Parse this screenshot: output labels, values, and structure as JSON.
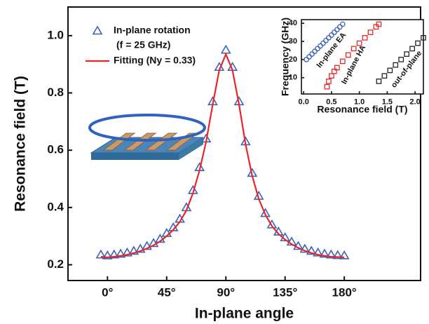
{
  "chart_data": [
    {
      "type": "line",
      "x_label": "In-plane angle",
      "y_label": "Resonance field (T)",
      "x": [
        -5,
        0,
        5,
        10,
        15,
        20,
        25,
        30,
        35,
        40,
        45,
        50,
        55,
        60,
        65,
        70,
        75,
        80,
        85,
        90,
        95,
        100,
        105,
        110,
        115,
        120,
        125,
        130,
        135,
        140,
        145,
        150,
        155,
        160,
        165,
        170,
        175,
        180
      ],
      "series": [
        {
          "name": "In-plane rotation",
          "note": "(f = 25 GHz)",
          "color": "#3a62b8",
          "marker": "triangle",
          "values": [
            0.235,
            0.232,
            0.235,
            0.238,
            0.242,
            0.248,
            0.255,
            0.265,
            0.275,
            0.29,
            0.31,
            0.33,
            0.36,
            0.4,
            0.46,
            0.54,
            0.64,
            0.77,
            0.89,
            0.95,
            0.89,
            0.77,
            0.63,
            0.52,
            0.44,
            0.38,
            0.34,
            0.315,
            0.295,
            0.28,
            0.265,
            0.255,
            0.248,
            0.242,
            0.238,
            0.235,
            0.233,
            0.232
          ]
        },
        {
          "name": "Fitting (Ny = 0.33)",
          "color": "#e8262a",
          "marker": "none",
          "values": [
            0.228,
            0.226,
            0.228,
            0.231,
            0.235,
            0.241,
            0.248,
            0.257,
            0.268,
            0.282,
            0.3,
            0.322,
            0.35,
            0.39,
            0.45,
            0.53,
            0.63,
            0.76,
            0.88,
            0.935,
            0.88,
            0.76,
            0.62,
            0.51,
            0.43,
            0.375,
            0.335,
            0.308,
            0.288,
            0.272,
            0.259,
            0.249,
            0.241,
            0.235,
            0.231,
            0.228,
            0.227,
            0.226
          ]
        }
      ],
      "xlim": [
        -30,
        238
      ],
      "ylim": [
        0.145,
        1.1
      ],
      "xticks": [
        {
          "value": 0,
          "label": "0°"
        },
        {
          "value": 45,
          "label": "45°"
        },
        {
          "value": 90,
          "label": "90°"
        },
        {
          "value": 135,
          "label": "135°"
        },
        {
          "value": 180,
          "label": "180°"
        }
      ],
      "yticks": [
        0.2,
        0.4,
        0.6,
        0.8,
        {
          "value": 1.0,
          "label": "1.0"
        }
      ]
    },
    {
      "type": "scatter",
      "x_label": "Resonance field (T)",
      "y_label": "Frequency (GHz)",
      "series": [
        {
          "name": "In-plane EA",
          "color": "#3a62b8",
          "marker": "circle",
          "x": [
            0.05,
            0.1,
            0.15,
            0.2,
            0.25,
            0.3,
            0.35,
            0.4,
            0.45,
            0.5,
            0.55,
            0.6,
            0.65,
            0.7
          ],
          "values": [
            20,
            21.5,
            23,
            24.5,
            26,
            27.5,
            29,
            30.5,
            32,
            33.5,
            35,
            36.5,
            38,
            39.5
          ]
        },
        {
          "name": "In-plane HA",
          "color": "#e8262a",
          "marker": "square",
          "x": [
            0.42,
            0.45,
            0.5,
            0.55,
            0.6,
            0.7,
            0.8,
            0.9,
            1.0,
            1.1,
            1.2,
            1.3,
            1.35
          ],
          "values": [
            5,
            8,
            11,
            13.5,
            15.5,
            19,
            22.5,
            26,
            29,
            32,
            35,
            38,
            39.5
          ]
        },
        {
          "name": "out-of-plane",
          "color": "#222222",
          "marker": "square",
          "x": [
            1.35,
            1.45,
            1.55,
            1.65,
            1.75,
            1.85,
            1.95,
            2.05,
            2.15
          ],
          "values": [
            8,
            11,
            14,
            17,
            20,
            23,
            26,
            29,
            32
          ]
        }
      ],
      "xlim": [
        -0.04,
        2.15
      ],
      "ylim": [
        1,
        42
      ],
      "xticks": [
        {
          "value": 0,
          "label": "0.0"
        },
        0.5,
        {
          "value": 1,
          "label": "1.0"
        },
        1.5,
        {
          "value": 2,
          "label": "2.0"
        }
      ],
      "yticks": [
        10,
        20,
        30,
        40
      ]
    }
  ]
}
